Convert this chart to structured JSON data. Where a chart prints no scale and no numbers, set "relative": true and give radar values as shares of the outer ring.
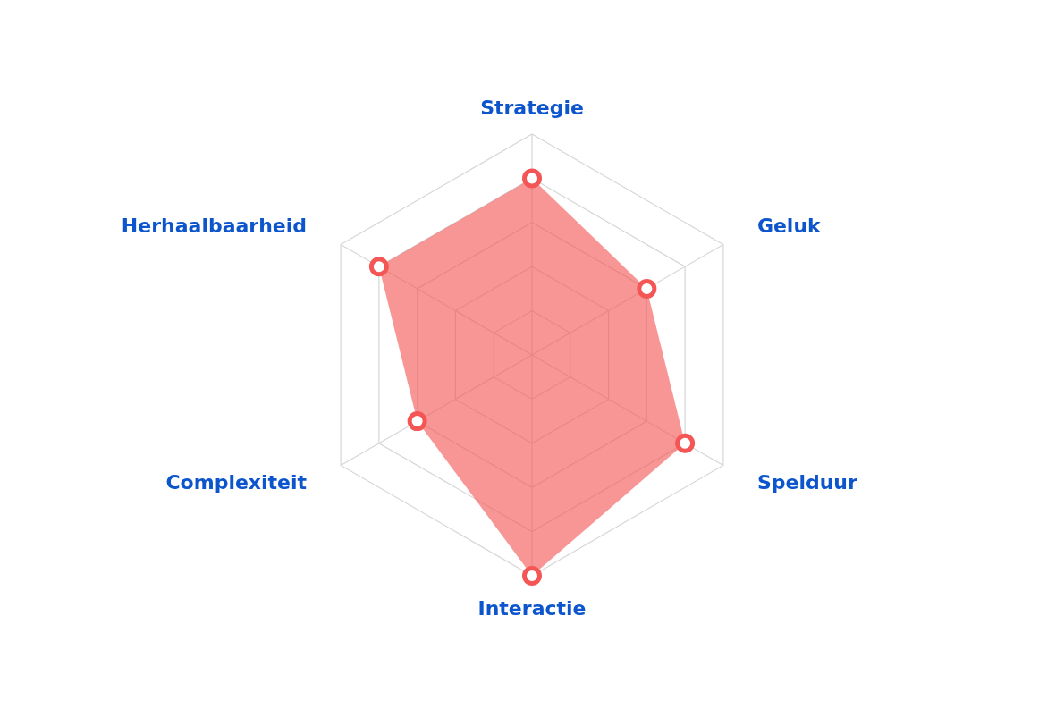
{
  "chart_data": {
    "type": "radar",
    "relative": true,
    "grid": true,
    "marker": "circle",
    "categories": [
      "Strategie",
      "Geluk",
      "Spelduur",
      "Interactie",
      "Complexiteit",
      "Herhaalbaarheid"
    ],
    "series": [
      {
        "color": "#f45656",
        "values": [
          0.8,
          0.6,
          0.8,
          1.0,
          0.6,
          0.8
        ]
      }
    ]
  }
}
